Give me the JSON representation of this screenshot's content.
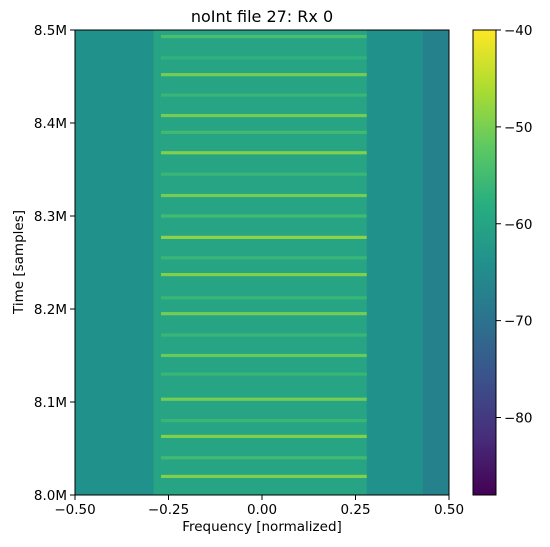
{
  "chart_data": {
    "type": "heatmap",
    "title": "noInt file 27: Rx 0",
    "xlabel": "Frequency [normalized]",
    "ylabel": "Time [samples]",
    "xlim": [
      -0.5,
      0.5
    ],
    "ylim": [
      8000000,
      8500000
    ],
    "x_ticks": [
      {
        "value": -0.5,
        "label": "−0.50"
      },
      {
        "value": -0.25,
        "label": "−0.25"
      },
      {
        "value": 0.0,
        "label": "0.00"
      },
      {
        "value": 0.25,
        "label": "0.25"
      },
      {
        "value": 0.5,
        "label": "0.50"
      }
    ],
    "y_ticks": [
      {
        "value": 8000000,
        "label": "8.0M"
      },
      {
        "value": 8100000,
        "label": "8.1M"
      },
      {
        "value": 8200000,
        "label": "8.2M"
      },
      {
        "value": 8300000,
        "label": "8.3M"
      },
      {
        "value": 8400000,
        "label": "8.4M"
      },
      {
        "value": 8500000,
        "label": "8.5M"
      }
    ],
    "colorbar": {
      "colormap": "viridis",
      "range": [
        -88,
        -40
      ],
      "ticks": [
        {
          "value": -40,
          "label": "−40"
        },
        {
          "value": -50,
          "label": "−50"
        },
        {
          "value": -60,
          "label": "−60"
        },
        {
          "value": -70,
          "label": "−70"
        },
        {
          "value": -80,
          "label": "−80"
        }
      ]
    },
    "background_level": -64,
    "edge_level": -68,
    "signal_band": {
      "x_start": -0.29,
      "x_end": 0.28,
      "level": -60
    },
    "bursts": [
      {
        "time": 8020000,
        "level": -49
      },
      {
        "time": 8040000,
        "level": -55
      },
      {
        "time": 8063000,
        "level": -49
      },
      {
        "time": 8080000,
        "level": -56
      },
      {
        "time": 8103000,
        "level": -50
      },
      {
        "time": 8130000,
        "level": -56
      },
      {
        "time": 8150000,
        "level": -51
      },
      {
        "time": 8172000,
        "level": -56
      },
      {
        "time": 8195000,
        "level": -50
      },
      {
        "time": 8212000,
        "level": -56
      },
      {
        "time": 8237000,
        "level": -49
      },
      {
        "time": 8255000,
        "level": -56
      },
      {
        "time": 8277000,
        "level": -48
      },
      {
        "time": 8300000,
        "level": -55
      },
      {
        "time": 8322000,
        "level": -50
      },
      {
        "time": 8345000,
        "level": -56
      },
      {
        "time": 8368000,
        "level": -49
      },
      {
        "time": 8390000,
        "level": -55
      },
      {
        "time": 8408000,
        "level": -50
      },
      {
        "time": 8430000,
        "level": -56
      },
      {
        "time": 8452000,
        "level": -50
      },
      {
        "time": 8470000,
        "level": -57
      },
      {
        "time": 8493000,
        "level": -54
      }
    ]
  }
}
